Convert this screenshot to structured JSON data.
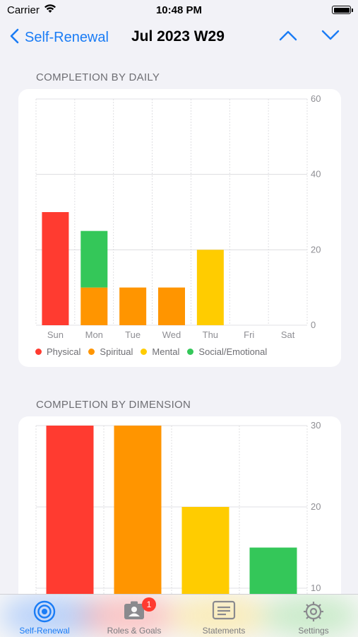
{
  "status": {
    "carrier": "Carrier",
    "time": "10:48 PM"
  },
  "nav": {
    "back_label": "Self-Renewal",
    "title": "Jul 2023 W29"
  },
  "sections": {
    "daily_title": "COMPLETION BY DAILY",
    "dimension_title": "COMPLETION BY DIMENSION"
  },
  "colors": {
    "physical": "#ff3b30",
    "spiritual": "#ff9500",
    "mental": "#ffcc00",
    "social": "#34c759",
    "accent": "#1a7cf5"
  },
  "legend": [
    "Physical",
    "Spiritual",
    "Mental",
    "Social/Emotional"
  ],
  "chart_data": [
    {
      "type": "bar",
      "stacked": true,
      "categories": [
        "Sun",
        "Mon",
        "Tue",
        "Wed",
        "Thu",
        "Fri",
        "Sat"
      ],
      "series": [
        {
          "name": "Physical",
          "values": [
            30,
            0,
            0,
            0,
            0,
            0,
            0
          ]
        },
        {
          "name": "Spiritual",
          "values": [
            0,
            10,
            10,
            10,
            0,
            0,
            0
          ]
        },
        {
          "name": "Mental",
          "values": [
            0,
            0,
            0,
            0,
            20,
            0,
            0
          ]
        },
        {
          "name": "Social/Emotional",
          "values": [
            0,
            15,
            0,
            0,
            0,
            0,
            0
          ]
        }
      ],
      "ylim": [
        0,
        60
      ],
      "yticks": [
        0,
        20,
        40,
        60
      ],
      "grid": true,
      "legend_position": "bottom"
    },
    {
      "type": "bar",
      "categories": [
        "Physical",
        "Spiritual",
        "Mental",
        "Social/Emotional"
      ],
      "values": [
        30,
        30,
        20,
        15
      ],
      "yticks": [
        10,
        20,
        30
      ],
      "ylim": [
        0,
        30
      ],
      "grid": true
    }
  ],
  "tabs": [
    {
      "label": "Self-Renewal",
      "icon": "target-icon",
      "active": true
    },
    {
      "label": "Roles & Goals",
      "icon": "contact-card-icon",
      "badge": "1"
    },
    {
      "label": "Statements",
      "icon": "statement-icon"
    },
    {
      "label": "Settings",
      "icon": "gear-icon"
    }
  ]
}
